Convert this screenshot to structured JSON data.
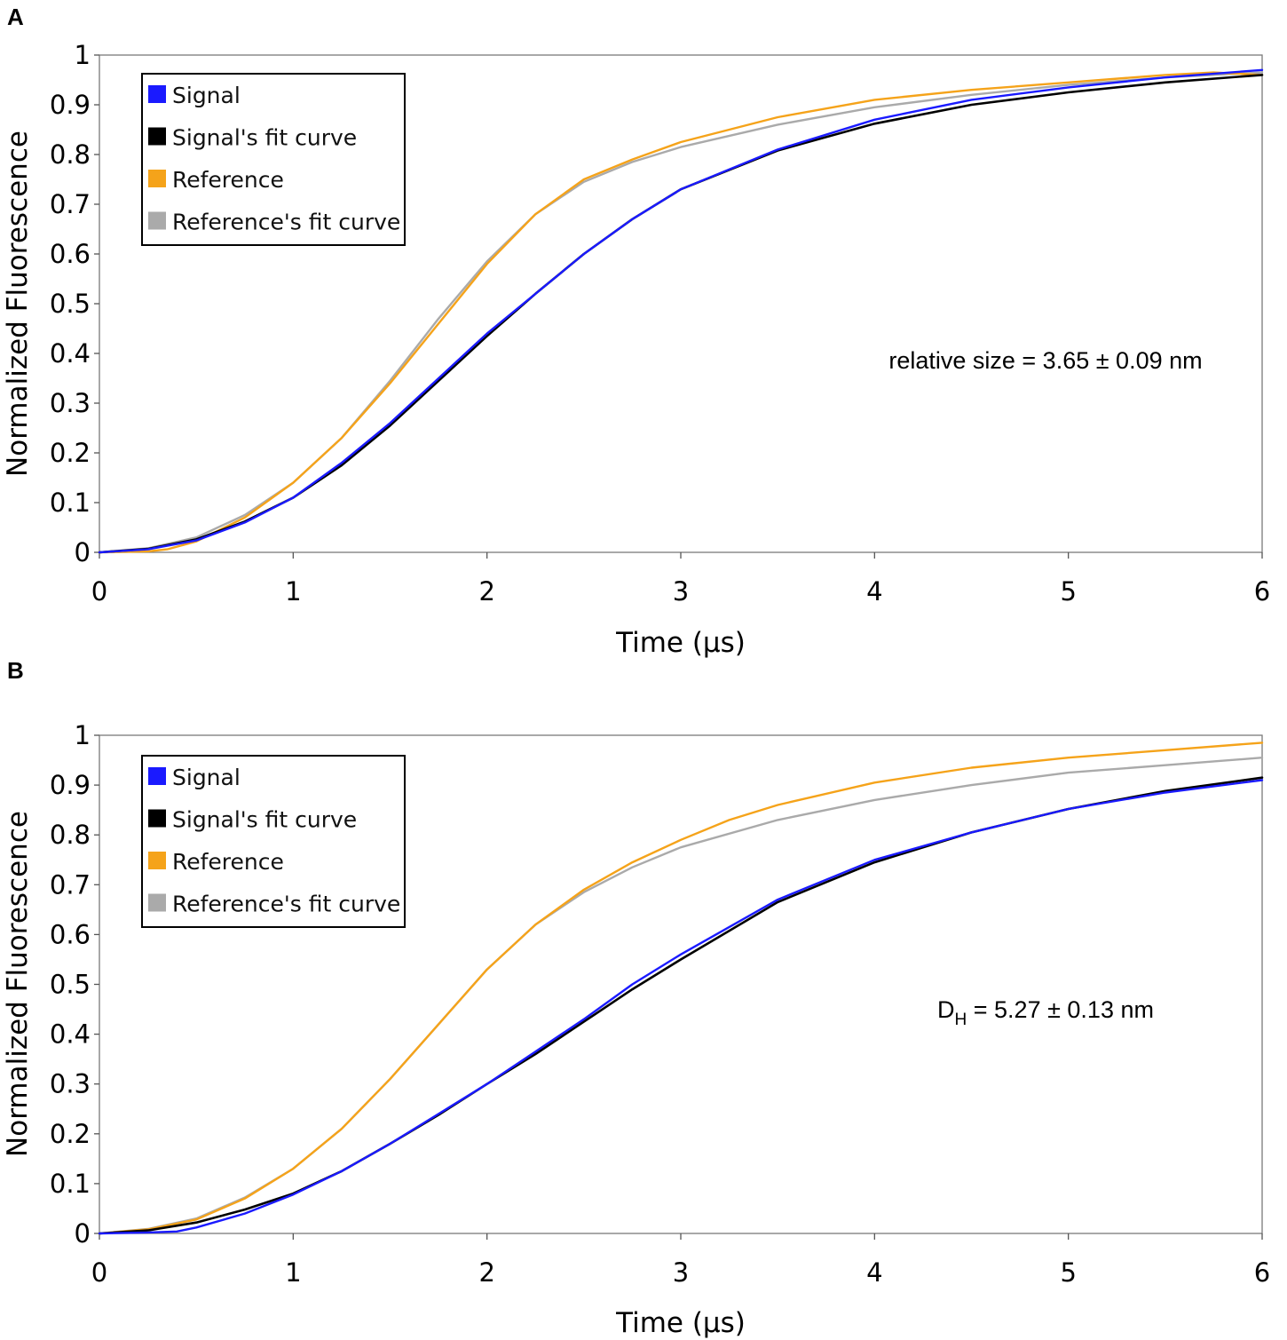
{
  "chart_data": [
    {
      "panel": "A",
      "type": "line",
      "xlabel": "Time (µs)",
      "ylabel": "Normalized Fluorescence",
      "xlim": [
        0,
        6
      ],
      "ylim": [
        0,
        1
      ],
      "xticks": [
        "0",
        "1",
        "2",
        "3",
        "4",
        "5",
        "6"
      ],
      "yticks": [
        "0",
        "0.1",
        "0.2",
        "0.3",
        "0.4",
        "0.5",
        "0.6",
        "0.7",
        "0.8",
        "0.9",
        "1"
      ],
      "legend_position": "top-left",
      "annotation": {
        "main": "relative size = 3.65 ± 0.09 nm",
        "sub": "",
        "rest": ""
      },
      "series": [
        {
          "name": "Signal",
          "color": "#1a1aff",
          "x": [
            0,
            0.25,
            0.5,
            0.75,
            1,
            1.25,
            1.5,
            1.75,
            2,
            2.25,
            2.5,
            2.75,
            3,
            3.5,
            4,
            4.5,
            5,
            5.5,
            6
          ],
          "y": [
            0,
            0.006,
            0.024,
            0.06,
            0.11,
            0.18,
            0.26,
            0.35,
            0.44,
            0.52,
            0.6,
            0.67,
            0.73,
            0.81,
            0.87,
            0.91,
            0.935,
            0.955,
            0.97
          ]
        },
        {
          "name": "Signal's fit curve",
          "color": "#000000",
          "x": [
            0,
            0.25,
            0.5,
            0.75,
            1,
            1.25,
            1.5,
            1.75,
            2,
            2.25,
            2.5,
            2.75,
            3,
            3.5,
            4,
            4.5,
            5,
            5.5,
            6
          ],
          "y": [
            0,
            0.007,
            0.026,
            0.062,
            0.11,
            0.175,
            0.255,
            0.345,
            0.435,
            0.52,
            0.6,
            0.67,
            0.73,
            0.808,
            0.862,
            0.9,
            0.925,
            0.945,
            0.96
          ]
        },
        {
          "name": "Reference",
          "color": "#f5a31a",
          "x": [
            0,
            0.25,
            0.35,
            0.5,
            0.75,
            1,
            1.25,
            1.5,
            1.75,
            2,
            2.25,
            2.5,
            2.75,
            3,
            3.5,
            4,
            4.5,
            5,
            5.5,
            5.75,
            6
          ],
          "y": [
            0,
            0.002,
            0.006,
            0.022,
            0.07,
            0.14,
            0.23,
            0.34,
            0.46,
            0.58,
            0.68,
            0.75,
            0.79,
            0.825,
            0.875,
            0.91,
            0.93,
            0.945,
            0.96,
            0.965,
            0.96
          ]
        },
        {
          "name": "Reference's fit curve",
          "color": "#aaaaaa",
          "x": [
            0,
            0.25,
            0.5,
            0.75,
            1,
            1.25,
            1.5,
            1.75,
            2,
            2.25,
            2.5,
            2.75,
            3,
            3.5,
            4,
            4.5,
            5,
            5.5,
            6
          ],
          "y": [
            0,
            0.008,
            0.03,
            0.075,
            0.14,
            0.23,
            0.345,
            0.47,
            0.585,
            0.68,
            0.745,
            0.785,
            0.815,
            0.86,
            0.895,
            0.92,
            0.94,
            0.955,
            0.965
          ]
        }
      ]
    },
    {
      "panel": "B",
      "type": "line",
      "xlabel": "Time (µs)",
      "ylabel": "Normalized Fluorescence",
      "xlim": [
        0,
        6
      ],
      "ylim": [
        0,
        1
      ],
      "xticks": [
        "0",
        "1",
        "2",
        "3",
        "4",
        "5",
        "6"
      ],
      "yticks": [
        "0",
        "0.1",
        "0.2",
        "0.3",
        "0.4",
        "0.5",
        "0.6",
        "0.7",
        "0.8",
        "0.9",
        "1"
      ],
      "legend_position": "top-left",
      "annotation": {
        "main": "D",
        "sub": "H",
        "rest": " = 5.27 ± 0.13 nm"
      },
      "series": [
        {
          "name": "Signal",
          "color": "#1a1aff",
          "x": [
            0,
            0.25,
            0.4,
            0.5,
            0.75,
            1,
            1.25,
            1.5,
            1.75,
            2,
            2.25,
            2.5,
            2.75,
            3,
            3.5,
            4,
            4.5,
            5,
            5.5,
            6
          ],
          "y": [
            0,
            0.002,
            0.004,
            0.012,
            0.04,
            0.078,
            0.125,
            0.18,
            0.24,
            0.3,
            0.365,
            0.43,
            0.5,
            0.56,
            0.67,
            0.75,
            0.805,
            0.852,
            0.885,
            0.91
          ]
        },
        {
          "name": "Signal's fit curve",
          "color": "#000000",
          "x": [
            0,
            0.25,
            0.5,
            0.75,
            1,
            1.25,
            1.5,
            1.75,
            2,
            2.25,
            2.5,
            2.75,
            3,
            3.5,
            4,
            4.5,
            5,
            5.5,
            6
          ],
          "y": [
            0,
            0.006,
            0.022,
            0.048,
            0.08,
            0.125,
            0.18,
            0.238,
            0.3,
            0.36,
            0.425,
            0.49,
            0.55,
            0.665,
            0.745,
            0.805,
            0.852,
            0.888,
            0.915
          ]
        },
        {
          "name": "Reference",
          "color": "#f5a31a",
          "x": [
            0,
            0.25,
            0.5,
            0.75,
            1,
            1.25,
            1.5,
            1.75,
            2,
            2.25,
            2.5,
            2.75,
            3,
            3.25,
            3.5,
            4,
            4.5,
            5,
            5.5,
            6
          ],
          "y": [
            0,
            0.008,
            0.028,
            0.07,
            0.13,
            0.21,
            0.31,
            0.42,
            0.53,
            0.62,
            0.69,
            0.745,
            0.79,
            0.83,
            0.86,
            0.905,
            0.935,
            0.955,
            0.97,
            0.985
          ]
        },
        {
          "name": "Reference's fit curve",
          "color": "#aaaaaa",
          "x": [
            0,
            0.25,
            0.5,
            0.75,
            1,
            1.25,
            1.5,
            1.75,
            2,
            2.25,
            2.5,
            2.75,
            3,
            3.5,
            4,
            4.5,
            5,
            5.5,
            6
          ],
          "y": [
            0,
            0.009,
            0.03,
            0.072,
            0.13,
            0.21,
            0.31,
            0.42,
            0.53,
            0.62,
            0.685,
            0.735,
            0.775,
            0.83,
            0.87,
            0.9,
            0.925,
            0.94,
            0.955
          ]
        }
      ]
    }
  ]
}
